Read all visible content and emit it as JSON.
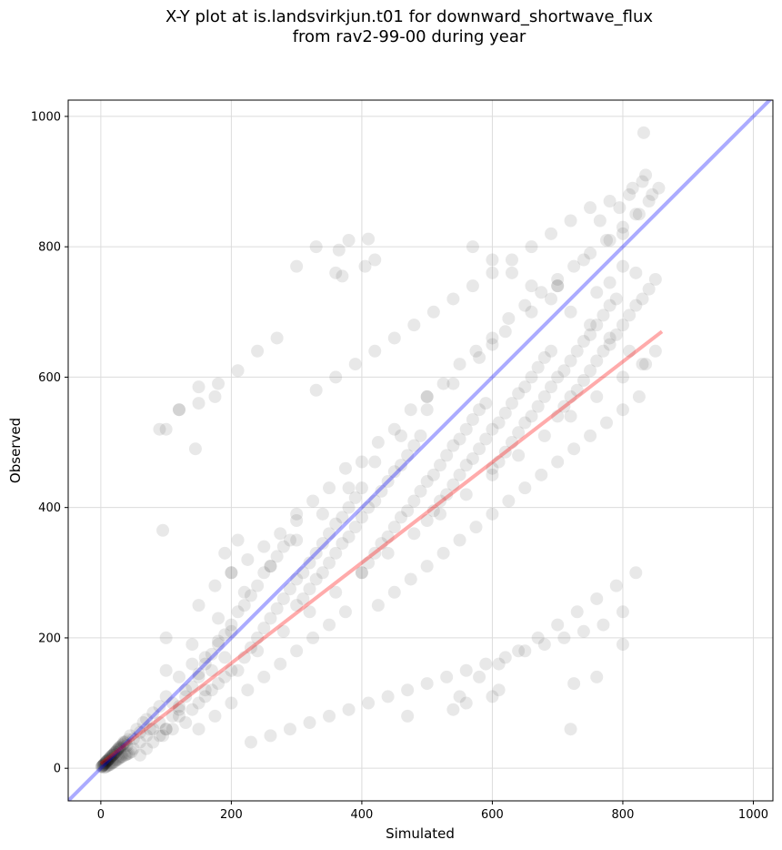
{
  "chart_data": {
    "type": "scatter",
    "title_line1": "X-Y plot at is.landsvirkjun.t01 for downward_shortwave_flux",
    "title_line2": "from rav2-99-00 during year",
    "xlabel": "Simulated",
    "ylabel": "Observed",
    "xlim": [
      -50,
      1030
    ],
    "ylim": [
      -50,
      1025
    ],
    "xticks": [
      0,
      200,
      400,
      600,
      800,
      1000
    ],
    "yticks": [
      0,
      200,
      400,
      600,
      800,
      1000
    ],
    "grid": true,
    "point_color": "#000000",
    "point_alpha": 0.09,
    "reference_line": {
      "name": "1:1 line",
      "color": "#0000ff",
      "x": [
        -50,
        1030
      ],
      "y": [
        -50,
        1030
      ]
    },
    "regression_line": {
      "name": "fit",
      "color": "#ff0000",
      "x": [
        0,
        860
      ],
      "y": [
        7,
        670
      ]
    },
    "series": [
      {
        "name": "",
        "x": [
          1,
          3,
          5,
          2,
          8,
          12,
          15,
          20,
          25,
          30,
          6,
          10,
          18,
          22,
          28,
          35,
          4,
          9,
          14,
          40,
          45,
          50,
          55,
          60,
          65,
          70,
          75,
          80,
          90,
          100,
          110,
          120,
          130,
          140,
          150,
          160,
          170,
          180,
          190,
          200,
          100,
          110,
          120,
          130,
          140,
          150,
          160,
          170,
          180,
          190,
          200,
          210,
          220,
          230,
          240,
          250,
          260,
          270,
          280,
          290,
          210,
          220,
          230,
          240,
          250,
          260,
          270,
          280,
          290,
          300,
          310,
          320,
          330,
          340,
          350,
          360,
          370,
          380,
          390,
          400,
          300,
          310,
          320,
          330,
          340,
          350,
          360,
          370,
          380,
          390,
          400,
          410,
          420,
          430,
          440,
          450,
          460,
          470,
          480,
          490,
          400,
          410,
          420,
          430,
          440,
          450,
          460,
          470,
          480,
          490,
          500,
          510,
          520,
          530,
          540,
          550,
          560,
          570,
          580,
          590,
          500,
          510,
          520,
          530,
          540,
          550,
          560,
          570,
          580,
          590,
          600,
          610,
          620,
          630,
          640,
          650,
          660,
          670,
          680,
          690,
          600,
          610,
          620,
          630,
          640,
          650,
          660,
          670,
          680,
          690,
          700,
          710,
          720,
          730,
          740,
          750,
          760,
          770,
          780,
          790,
          700,
          710,
          720,
          730,
          740,
          750,
          760,
          770,
          780,
          790,
          800,
          810,
          820,
          830,
          840,
          850,
          820,
          800,
          780,
          760,
          50,
          60,
          70,
          80,
          90,
          60,
          70,
          80,
          90,
          100,
          120,
          140,
          160,
          180,
          130,
          150,
          170,
          190,
          110,
          95,
          150,
          175,
          200,
          225,
          250,
          275,
          300,
          325,
          350,
          375,
          150,
          175,
          200,
          225,
          250,
          275,
          300,
          325,
          350,
          375,
          425,
          450,
          475,
          500,
          525,
          550,
          575,
          600,
          625,
          650,
          425,
          450,
          475,
          500,
          525,
          550,
          575,
          600,
          625,
          650,
          675,
          700,
          725,
          750,
          775,
          800,
          825,
          675,
          700,
          725,
          750,
          775,
          800,
          825,
          845,
          855,
          835,
          815,
          795,
          765,
          100,
          140,
          180,
          220,
          260,
          300,
          340,
          380,
          420,
          460,
          500,
          540,
          580,
          620,
          660,
          700,
          740,
          780,
          820,
          840,
          120,
          160,
          200,
          240,
          280,
          320,
          360,
          400,
          440,
          480,
          520,
          560,
          600,
          640,
          680,
          720,
          760,
          800,
          830,
          850,
          380,
          420,
          360,
          330,
          300,
          270,
          240,
          210,
          180,
          150,
          120,
          90,
          100,
          200,
          300,
          400,
          500,
          600,
          700,
          800,
          550,
          580,
          610,
          640,
          670,
          700,
          730,
          760,
          790,
          820,
          570,
          600,
          630,
          660,
          690,
          720,
          750,
          780,
          810,
          835,
          2,
          4,
          6,
          8,
          10,
          12,
          14,
          16,
          18,
          20,
          22,
          24,
          26,
          28,
          30,
          32,
          34,
          36,
          38,
          42,
          5,
          7,
          9,
          11,
          13,
          15,
          17,
          19,
          21,
          23,
          25,
          27,
          29,
          31,
          33,
          37,
          39,
          41,
          43,
          47,
          230,
          260,
          290,
          320,
          350,
          380,
          410,
          440,
          470,
          500,
          530,
          560,
          590,
          620,
          650,
          680,
          710,
          740,
          770,
          800,
          190,
          210,
          330,
          360,
          390,
          420,
          450,
          480,
          510,
          540,
          570,
          600,
          630,
          660,
          690,
          720,
          750,
          780,
          810,
          830,
          410,
          405,
          365,
          370,
          120,
          150,
          175,
          95,
          100,
          145,
          470,
          540,
          560,
          600,
          610,
          720,
          725,
          760,
          800,
          832
        ],
        "y": [
          2,
          4,
          6,
          3,
          10,
          14,
          18,
          22,
          28,
          30,
          8,
          12,
          20,
          25,
          32,
          40,
          5,
          11,
          16,
          35,
          50,
          45,
          60,
          55,
          70,
          75,
          60,
          85,
          95,
          110,
          100,
          140,
          120,
          160,
          140,
          170,
          150,
          190,
          170,
          210,
          60,
          80,
          95,
          110,
          125,
          145,
          160,
          175,
          195,
          205,
          220,
          240,
          250,
          265,
          280,
          300,
          310,
          325,
          340,
          350,
          150,
          170,
          185,
          200,
          215,
          230,
          245,
          260,
          275,
          290,
          300,
          315,
          330,
          345,
          360,
          375,
          385,
          400,
          415,
          430,
          250,
          260,
          275,
          290,
          300,
          315,
          330,
          345,
          355,
          370,
          385,
          400,
          410,
          425,
          440,
          455,
          465,
          480,
          495,
          510,
          300,
          315,
          330,
          345,
          355,
          370,
          385,
          395,
          410,
          425,
          440,
          450,
          465,
          480,
          495,
          505,
          520,
          535,
          550,
          560,
          380,
          395,
          410,
          420,
          435,
          450,
          465,
          475,
          490,
          505,
          520,
          530,
          545,
          560,
          575,
          585,
          600,
          615,
          630,
          640,
          460,
          470,
          485,
          500,
          515,
          530,
          540,
          555,
          570,
          585,
          600,
          610,
          625,
          640,
          655,
          665,
          680,
          695,
          710,
          720,
          540,
          555,
          570,
          580,
          595,
          610,
          625,
          640,
          650,
          665,
          680,
          695,
          710,
          720,
          735,
          750,
          760,
          770,
          745,
          730,
          30,
          40,
          50,
          60,
          70,
          20,
          30,
          40,
          50,
          60,
          80,
          90,
          110,
          130,
          70,
          100,
          120,
          140,
          60,
          50,
          250,
          280,
          300,
          320,
          340,
          360,
          390,
          410,
          430,
          460,
          60,
          80,
          100,
          120,
          140,
          160,
          180,
          200,
          220,
          240,
          500,
          520,
          550,
          570,
          590,
          620,
          640,
          660,
          690,
          710,
          250,
          270,
          290,
          310,
          330,
          350,
          370,
          390,
          410,
          430,
          730,
          750,
          770,
          790,
          810,
          830,
          850,
          450,
          470,
          490,
          510,
          530,
          550,
          570,
          880,
          890,
          910,
          890,
          860,
          840,
          150,
          190,
          230,
          270,
          310,
          350,
          390,
          430,
          470,
          510,
          550,
          590,
          630,
          670,
          700,
          740,
          780,
          810,
          850,
          870,
          90,
          120,
          150,
          180,
          210,
          240,
          270,
          300,
          330,
          360,
          390,
          420,
          450,
          480,
          510,
          540,
          570,
          600,
          620,
          640,
          810,
          780,
          760,
          800,
          770,
          660,
          640,
          610,
          590,
          560,
          550,
          520,
          200,
          300,
          380,
          470,
          570,
          650,
          740,
          820,
          110,
          140,
          160,
          180,
          200,
          220,
          240,
          260,
          280,
          300,
          800,
          780,
          760,
          740,
          720,
          700,
          680,
          660,
          640,
          620,
          3,
          5,
          7,
          9,
          11,
          13,
          15,
          18,
          20,
          22,
          24,
          26,
          29,
          31,
          33,
          35,
          37,
          39,
          41,
          44,
          1,
          2,
          3,
          4,
          5,
          6,
          8,
          9,
          10,
          12,
          13,
          14,
          16,
          17,
          18,
          20,
          21,
          22,
          23,
          25,
          40,
          50,
          60,
          70,
          80,
          90,
          100,
          110,
          120,
          130,
          140,
          150,
          160,
          170,
          180,
          190,
          200,
          210,
          220,
          240,
          330,
          350,
          580,
          600,
          620,
          640,
          660,
          680,
          700,
          720,
          740,
          760,
          780,
          800,
          820,
          840,
          860,
          870,
          880,
          900,
          812,
          770,
          795,
          755,
          550,
          585,
          570,
          365,
          520,
          490,
          80,
          90,
          100,
          110,
          120,
          60,
          130,
          140,
          190,
          975
        ]
      }
    ]
  }
}
